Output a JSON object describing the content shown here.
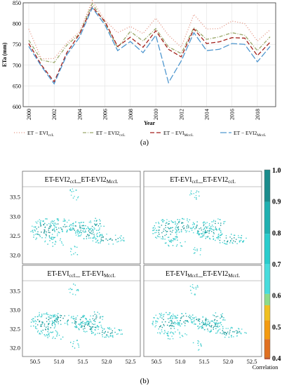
{
  "chart_data": [
    {
      "type": "line",
      "panel_label": "(a)",
      "xlabel": "Year",
      "ylabel": "ETa (mm)",
      "ylim": [
        600,
        850
      ],
      "yticks": [
        "600",
        "650",
        "700",
        "750",
        "800",
        "850"
      ],
      "x": [
        2000,
        2001,
        2002,
        2003,
        2004,
        2005,
        2006,
        2007,
        2008,
        2009,
        2010,
        2011,
        2012,
        2013,
        2014,
        2015,
        2016,
        2017,
        2018,
        2019
      ],
      "xticks": [
        "2000",
        "2002",
        "2004",
        "2006",
        "2008",
        "2010",
        "2012",
        "2014",
        "2016",
        "2018"
      ],
      "grid": true,
      "legend_position": "bottom",
      "series": [
        {
          "name": "ET−EVIccL",
          "name_main": "ET − EVI",
          "name_sub": "ccL",
          "color": "#e3907e",
          "dash": "1,2.5",
          "values": [
            787,
            715,
            716,
            753,
            780,
            855,
            808,
            778,
            793,
            776,
            813,
            772,
            743,
            822,
            787,
            788,
            806,
            800,
            758,
            785
          ]
        },
        {
          "name": "ET−EVI2ccL",
          "name_main": "ET − EVI2",
          "name_sub": "ccL",
          "color": "#9aa86a",
          "dash": "5,2,1,2",
          "values": [
            760,
            712,
            706,
            748,
            775,
            848,
            802,
            742,
            781,
            758,
            788,
            744,
            728,
            790,
            762,
            768,
            778,
            772,
            735,
            768
          ]
        },
        {
          "name": "ET−EVIMccL",
          "name_main": "ET − EVI",
          "name_sub": "MccL",
          "color": "#a31f1a",
          "dash": "6,3",
          "values": [
            752,
            700,
            660,
            730,
            775,
            840,
            805,
            745,
            767,
            743,
            783,
            738,
            720,
            787,
            752,
            756,
            766,
            765,
            723,
            755
          ]
        },
        {
          "name": "ET−EVI2MccL",
          "name_main": "ET − EVI2",
          "name_sub": "MccL",
          "color": "#4f97cf",
          "dash": "9,3",
          "values": [
            745,
            697,
            655,
            725,
            767,
            838,
            797,
            735,
            757,
            730,
            772,
            658,
            710,
            778,
            735,
            738,
            752,
            750,
            708,
            745
          ]
        }
      ]
    },
    {
      "type": "heatmap",
      "panel_label": "(b)",
      "colorbar_label": "Correlation",
      "colorbar_range": [
        0.4,
        1.0
      ],
      "colorbar_ticks": [
        "1.0",
        "0.9",
        "0.8",
        "0.7",
        "0.6",
        "0.5",
        "0.4"
      ],
      "colorbar_colors": [
        "#1a8c8c",
        "#1fb0b0",
        "#29cccc",
        "#48dcdc",
        "#8ddb8a",
        "#f0c020",
        "#f39a10",
        "#e07020",
        "#c85a3a"
      ],
      "yticks": [
        "33.5",
        "33.0",
        "32.5",
        "32.0"
      ],
      "xticks": [
        "50.5",
        "51.0",
        "51.5",
        "52.0",
        "52.5"
      ],
      "maps": [
        {
          "title_parts": [
            {
              "t": "ET-EVI2"
            },
            {
              "t": "ccL",
              "sub": true
            },
            {
              "t": "_ET-EVI2"
            },
            {
              "t": "MccL",
              "sub": true
            }
          ]
        },
        {
          "title_parts": [
            {
              "t": "ET-EVI"
            },
            {
              "t": "ccL",
              "sub": true
            },
            {
              "t": "_ET-EVI2"
            },
            {
              "t": "ccL",
              "sub": true
            }
          ]
        },
        {
          "title_parts": [
            {
              "t": "ET-EVI"
            },
            {
              "t": "ccL",
              "sub": true
            },
            {
              "t": "_ ET-EVI"
            },
            {
              "t": "MccL",
              "sub": true
            }
          ]
        },
        {
          "title_parts": [
            {
              "t": "ET-EVI"
            },
            {
              "t": "MccL",
              "sub": true
            },
            {
              "t": "_ET-EVI2"
            },
            {
              "t": "MccL",
              "sub": true
            }
          ]
        }
      ]
    }
  ]
}
